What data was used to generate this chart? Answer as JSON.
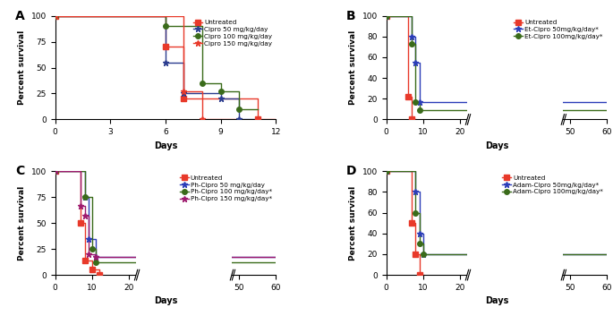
{
  "panel_A": {
    "title": "A",
    "series": [
      {
        "label": "Untreated",
        "color": "#e8392a",
        "marker": "s",
        "x": [
          0,
          6,
          6,
          7,
          7,
          9,
          9,
          11,
          11,
          12
        ],
        "y": [
          100,
          100,
          70,
          70,
          20,
          20,
          20,
          20,
          0,
          0
        ]
      },
      {
        "label": "Cipro 50 mg/kg/day",
        "color": "#2b3d8f",
        "marker": "*",
        "x": [
          0,
          6,
          6,
          7,
          7,
          9,
          9,
          10,
          10,
          11
        ],
        "y": [
          100,
          100,
          55,
          55,
          25,
          25,
          20,
          20,
          0,
          0
        ]
      },
      {
        "label": "Cipro 100 mg/kg/day",
        "color": "#3a6b1a",
        "marker": "o",
        "x": [
          0,
          6,
          6,
          8,
          8,
          9,
          9,
          10,
          10,
          11
        ],
        "y": [
          100,
          100,
          90,
          90,
          35,
          35,
          27,
          27,
          10,
          10
        ]
      },
      {
        "label": "Cipro 150 mg/kg/day",
        "color": "#e8392a",
        "marker": "*",
        "x": [
          0,
          7,
          7,
          8,
          8,
          9,
          9,
          10
        ],
        "y": [
          100,
          100,
          27,
          27,
          0,
          0,
          0,
          0
        ]
      }
    ],
    "xlim": [
      0,
      12
    ],
    "xticks": [
      0,
      3,
      6,
      9,
      12
    ],
    "ylim": [
      0,
      100
    ],
    "yticks": [
      0,
      25,
      50,
      75,
      100
    ],
    "xlabel": "Days",
    "ylabel": "Percent survival",
    "has_break": false,
    "legend_asterisks": [
      "",
      "",
      "",
      ""
    ]
  },
  "panel_B": {
    "title": "B",
    "series": [
      {
        "label": "Untreated",
        "color": "#e8392a",
        "marker": "s",
        "x": [
          0,
          6,
          6,
          7,
          7,
          8,
          8
        ],
        "y": [
          100,
          100,
          22,
          22,
          0,
          0,
          0
        ],
        "x_display": [
          0,
          6,
          6,
          7,
          7,
          8,
          8
        ],
        "y_display": [
          100,
          100,
          22,
          22,
          0,
          0,
          0
        ]
      },
      {
        "label": "Et-Cipro 50mg/kg/day",
        "color": "#2b3db8",
        "marker": "*",
        "x": [
          0,
          7,
          7,
          8,
          8,
          9,
          9,
          60
        ],
        "y": [
          100,
          100,
          80,
          80,
          55,
          55,
          17,
          17
        ],
        "x_display": [
          0,
          7,
          7,
          8,
          8,
          9,
          9,
          22,
          50,
          60
        ],
        "y_display": [
          100,
          100,
          80,
          80,
          55,
          55,
          17,
          17,
          17,
          17
        ]
      },
      {
        "label": "Et-Cipro 100mg/kg/day",
        "color": "#3a6b1a",
        "marker": "o",
        "x": [
          0,
          7,
          7,
          8,
          8,
          9,
          9,
          60
        ],
        "y": [
          100,
          100,
          73,
          73,
          17,
          17,
          9,
          9
        ],
        "x_display": [
          0,
          7,
          7,
          8,
          8,
          9,
          9,
          22,
          50,
          60
        ],
        "y_display": [
          100,
          100,
          73,
          73,
          17,
          17,
          9,
          9,
          9,
          9
        ]
      }
    ],
    "xlim": [
      0,
      60
    ],
    "xticks": [
      0,
      10,
      20,
      50,
      60
    ],
    "ylim": [
      0,
      100
    ],
    "yticks": [
      0,
      20,
      40,
      60,
      80,
      100
    ],
    "xlabel": "Days",
    "ylabel": "Percent survival",
    "has_break": true,
    "break_x1": 22,
    "break_x2": 48,
    "display_xlim": [
      0,
      60
    ],
    "legend_asterisks": [
      "",
      "*",
      "*"
    ]
  },
  "panel_C": {
    "title": "C",
    "series": [
      {
        "label": "Untreated",
        "color": "#e8392a",
        "marker": "s",
        "x": [
          0,
          7,
          7,
          8,
          8,
          10,
          10,
          12,
          12
        ],
        "y": [
          100,
          100,
          50,
          50,
          14,
          14,
          5,
          5,
          0
        ],
        "x_display": [
          0,
          7,
          7,
          8,
          8,
          10,
          10,
          12,
          12
        ],
        "y_display": [
          100,
          100,
          50,
          50,
          14,
          14,
          5,
          5,
          0
        ]
      },
      {
        "label": "Ph-Cipro 50 mg/kg/day",
        "color": "#2b3db8",
        "marker": "*",
        "x": [
          0,
          8,
          8,
          9,
          9,
          11,
          11,
          60
        ],
        "y": [
          100,
          100,
          75,
          75,
          35,
          35,
          17,
          17
        ],
        "x_display": [
          0,
          8,
          8,
          9,
          9,
          11,
          11,
          22,
          50,
          60
        ],
        "y_display": [
          100,
          100,
          75,
          75,
          35,
          35,
          17,
          17,
          17,
          17
        ]
      },
      {
        "label": "Ph-Cipro 100 mg/kg/day",
        "color": "#3a6b1a",
        "marker": "o",
        "x": [
          0,
          8,
          8,
          10,
          10,
          11,
          11,
          60
        ],
        "y": [
          100,
          100,
          75,
          75,
          25,
          25,
          12,
          12
        ],
        "x_display": [
          0,
          8,
          8,
          10,
          10,
          11,
          11,
          22,
          50,
          60
        ],
        "y_display": [
          100,
          100,
          75,
          75,
          25,
          25,
          12,
          12,
          12,
          12
        ]
      },
      {
        "label": "Ph-Cipro 150 mg/kg/day",
        "color": "#9e1a6e",
        "marker": "*",
        "x": [
          0,
          7,
          7,
          8,
          8,
          9,
          9,
          11,
          11,
          60
        ],
        "y": [
          100,
          100,
          67,
          67,
          57,
          57,
          20,
          20,
          17,
          17
        ],
        "x_display": [
          0,
          7,
          7,
          8,
          8,
          9,
          9,
          11,
          11,
          22,
          50,
          60
        ],
        "y_display": [
          100,
          100,
          67,
          67,
          57,
          57,
          20,
          20,
          17,
          17,
          17,
          17
        ]
      }
    ],
    "xlim": [
      0,
      60
    ],
    "xticks": [
      0,
      10,
      20,
      50,
      60
    ],
    "ylim": [
      0,
      100
    ],
    "yticks": [
      0,
      25,
      50,
      75,
      100
    ],
    "xlabel": "Days",
    "ylabel": "Percent survival",
    "has_break": true,
    "break_x1": 22,
    "break_x2": 48,
    "legend_asterisks": [
      "",
      "",
      "*",
      "*"
    ]
  },
  "panel_D": {
    "title": "D",
    "series": [
      {
        "label": "Untreated",
        "color": "#e8392a",
        "marker": "s",
        "x": [
          0,
          7,
          7,
          8,
          8,
          9,
          9,
          10
        ],
        "y": [
          100,
          100,
          50,
          50,
          20,
          20,
          0,
          0
        ],
        "x_display": [
          0,
          7,
          7,
          8,
          8,
          9,
          9,
          10
        ],
        "y_display": [
          100,
          100,
          50,
          50,
          20,
          20,
          0,
          0
        ]
      },
      {
        "label": "Adam-Cipro 50mg/kg/day",
        "color": "#2b3db8",
        "marker": "*",
        "x": [
          0,
          8,
          8,
          9,
          9,
          10,
          10,
          60
        ],
        "y": [
          100,
          100,
          80,
          80,
          40,
          40,
          20,
          20
        ],
        "x_display": [
          0,
          8,
          8,
          9,
          9,
          10,
          10,
          22,
          50,
          60
        ],
        "y_display": [
          100,
          100,
          80,
          80,
          40,
          40,
          20,
          20,
          20,
          20
        ]
      },
      {
        "label": "Adam-Cipro 100mg/kg/day",
        "color": "#3a6b1a",
        "marker": "o",
        "x": [
          0,
          8,
          8,
          9,
          9,
          10,
          10,
          60
        ],
        "y": [
          100,
          100,
          60,
          60,
          30,
          30,
          20,
          20
        ],
        "x_display": [
          0,
          8,
          8,
          9,
          9,
          10,
          10,
          22,
          50,
          60
        ],
        "y_display": [
          100,
          100,
          60,
          60,
          30,
          30,
          20,
          20,
          20,
          20
        ]
      }
    ],
    "xlim": [
      0,
      60
    ],
    "xticks": [
      0,
      10,
      20,
      50,
      60
    ],
    "ylim": [
      0,
      100
    ],
    "yticks": [
      0,
      20,
      40,
      60,
      80,
      100
    ],
    "xlabel": "Days",
    "ylabel": "Percent survival",
    "has_break": true,
    "break_x1": 22,
    "break_x2": 48,
    "legend_asterisks": [
      "",
      "*",
      "*"
    ]
  }
}
